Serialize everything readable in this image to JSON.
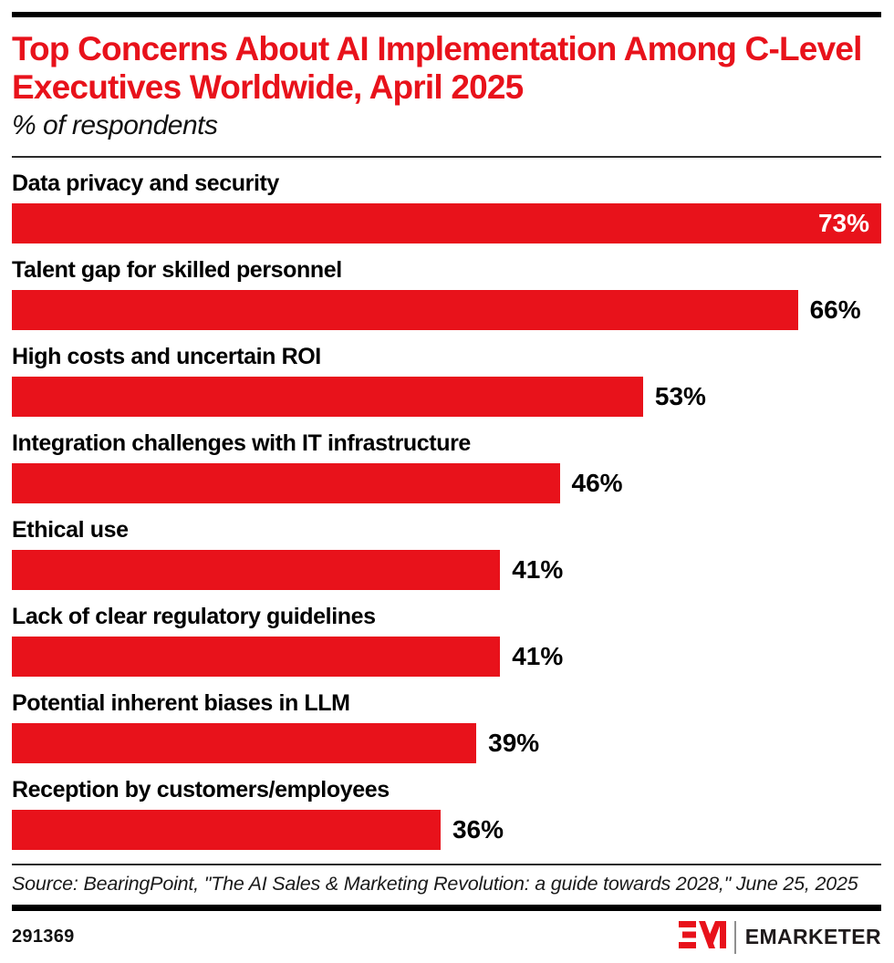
{
  "header": {
    "title": "Top Concerns About AI Implementation Among C-Level Executives Worldwide, April 2025",
    "subtitle": "% of respondents"
  },
  "chart_data": {
    "type": "bar",
    "orientation": "horizontal",
    "categories": [
      "Data privacy and security",
      "Talent gap for skilled personnel",
      "High costs and uncertain ROI",
      "Integration challenges with IT infrastructure",
      "Ethical use",
      "Lack of clear regulatory guidelines",
      "Potential inherent biases in LLM",
      "Reception by customers/employees"
    ],
    "values": [
      73,
      66,
      53,
      46,
      41,
      41,
      39,
      36
    ],
    "value_suffix": "%",
    "xlim": [
      0,
      73
    ],
    "bar_color": "#e8121b",
    "grid": false,
    "legend": null,
    "title": "Top Concerns About AI Implementation Among C-Level Executives Worldwide, April 2025",
    "xlabel": "",
    "ylabel": ""
  },
  "source": {
    "text": "Source: BearingPoint, \"The AI Sales & Marketing Revolution: a guide towards 2028,\" June 25, 2025"
  },
  "footer": {
    "chart_id": "291369",
    "brand_name": "EMARKETER",
    "logo_icon": "emarketer-em-logo",
    "logo_color": "#e8121b"
  },
  "colors": {
    "accent_red": "#e8121b",
    "rule_black": "#000000",
    "text_black": "#111111"
  }
}
